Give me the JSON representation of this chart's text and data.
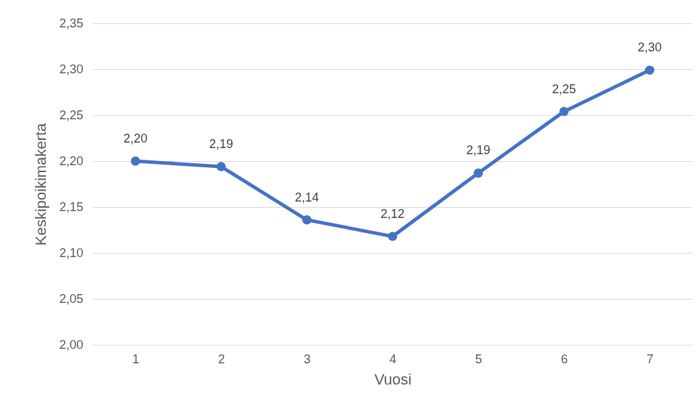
{
  "chart_data": {
    "type": "line",
    "xlabel": "Vuosi",
    "ylabel": "Keskipoikimakerta",
    "categories": [
      "1",
      "2",
      "3",
      "4",
      "5",
      "6",
      "7"
    ],
    "series": [
      {
        "color": "#4472c4",
        "values": [
          2.2,
          2.194,
          2.136,
          2.118,
          2.187,
          2.254,
          2.299
        ],
        "value_labels": [
          "2,20",
          "2,19",
          "2,14",
          "2,12",
          "2,19",
          "2,25",
          "2,30"
        ]
      }
    ],
    "ylim": [
      2.0,
      2.35
    ],
    "yticks": [
      {
        "value": 2.0,
        "label": "2,00"
      },
      {
        "value": 2.05,
        "label": "2,05"
      },
      {
        "value": 2.1,
        "label": "2,10"
      },
      {
        "value": 2.15,
        "label": "2,15"
      },
      {
        "value": 2.2,
        "label": "2,20"
      },
      {
        "value": 2.25,
        "label": "2,25"
      },
      {
        "value": 2.3,
        "label": "2,30"
      },
      {
        "value": 2.35,
        "label": "2,35"
      }
    ],
    "grid": "y",
    "marker": "circle",
    "line_style": "solid"
  }
}
